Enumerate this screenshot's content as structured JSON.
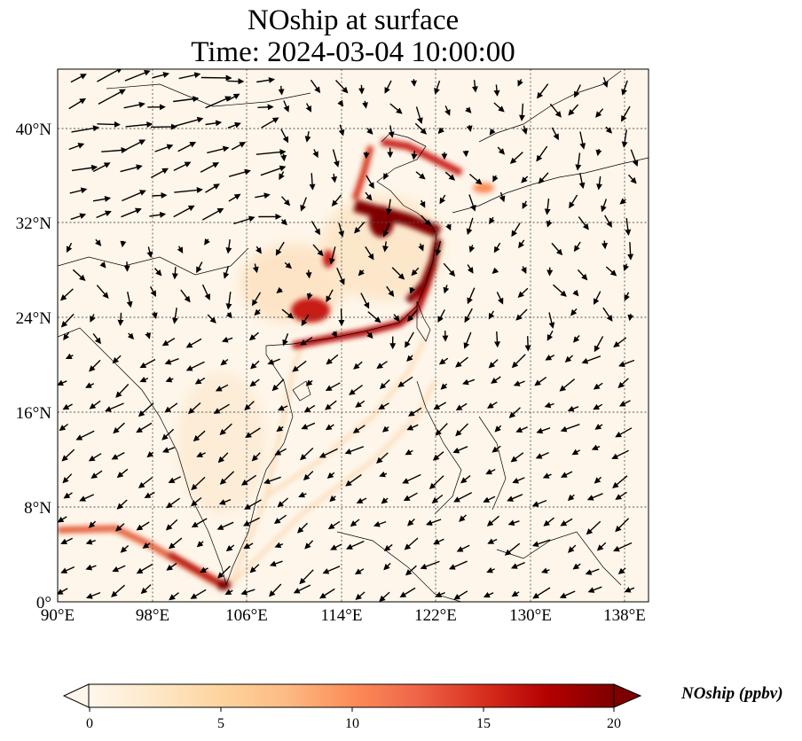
{
  "title": {
    "line1": "NOship at surface",
    "line2": "Time: 2024-03-04 10:00:00"
  },
  "map": {
    "variable": "NOship",
    "lon_range": [
      90,
      140
    ],
    "lat_range": [
      0,
      45
    ],
    "lon_ticks": [
      "90°E",
      "98°E",
      "106°E",
      "114°E",
      "122°E",
      "130°E",
      "138°E"
    ],
    "lat_ticks": [
      "0°",
      "8°N",
      "16°N",
      "24°N",
      "32°N",
      "40°N"
    ],
    "gridlines": true,
    "overlay": "wind-vectors"
  },
  "colorbar": {
    "label": "NOship (ppbv)",
    "ticks": [
      "0",
      "5",
      "10",
      "15",
      "20"
    ],
    "range": [
      0,
      20
    ],
    "colormap": "OrRd",
    "extend": "both",
    "colors": [
      "#fff7ec",
      "#fee8c8",
      "#fdd49e",
      "#fdbb84",
      "#fc8d59",
      "#ef6548",
      "#d7301f",
      "#b30000",
      "#7f0000"
    ]
  }
}
